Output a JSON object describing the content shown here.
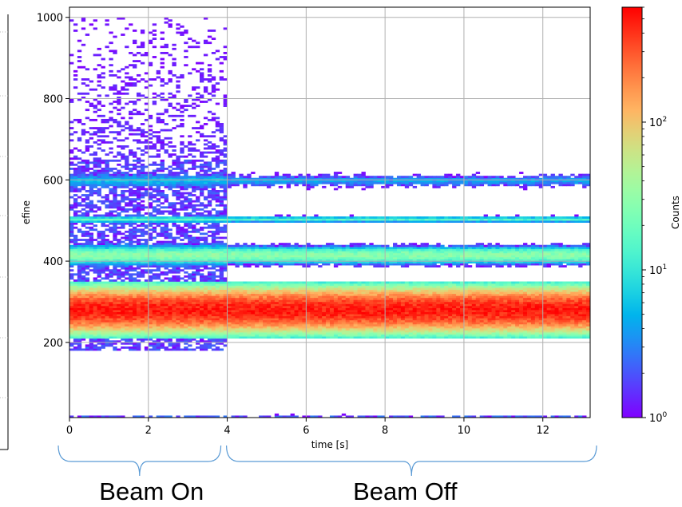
{
  "chart_data": {
    "type": "heatmap",
    "xlabel": "time [s]",
    "ylabel": "efine",
    "xlim": [
      0,
      13.2
    ],
    "ylim": [
      15,
      1025
    ],
    "xticks": [
      0,
      2,
      4,
      6,
      8,
      10,
      12
    ],
    "yticks": [
      200,
      400,
      600,
      800,
      1000
    ],
    "grid": true,
    "colormap": "rainbow",
    "colorbar": {
      "label": "Counts",
      "scale": "log",
      "range": [
        1,
        600
      ],
      "ticks": [
        {
          "value": 1,
          "base": "10",
          "exp": "0"
        },
        {
          "value": 10,
          "base": "10",
          "exp": "1"
        },
        {
          "value": 100,
          "base": "10",
          "exp": "2"
        }
      ]
    },
    "bands": [
      {
        "center": 280,
        "halfwidth": 45,
        "peak_counts": 500
      },
      {
        "center": 415,
        "halfwidth": 18,
        "peak_counts": 30
      },
      {
        "center": 503,
        "halfwidth": 6,
        "peak_counts": 15
      },
      {
        "center": 598,
        "halfwidth": 14,
        "peak_counts": 4
      },
      {
        "center": 18,
        "halfwidth": 3,
        "peak_counts": 2
      }
    ],
    "regions": [
      {
        "label": "Beam On",
        "x_range": [
          0,
          4
        ]
      },
      {
        "label": "Beam Off",
        "x_range": [
          4,
          13.2
        ]
      }
    ]
  }
}
